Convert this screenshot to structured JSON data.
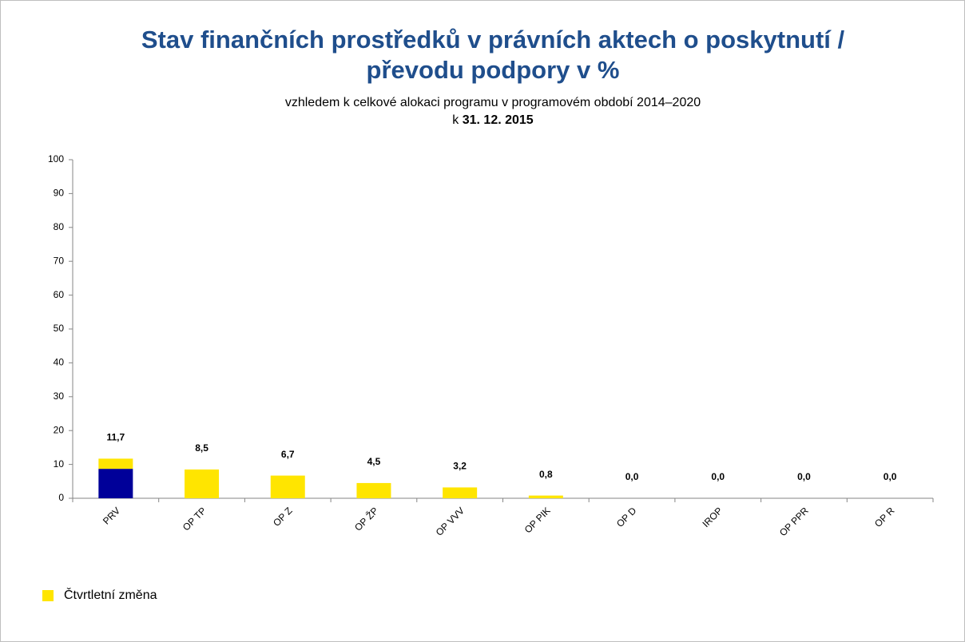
{
  "chart_data": {
    "type": "bar",
    "stacked": true,
    "title": [
      "Stav finančních prostředků v právních aktech o poskytnutí /",
      "převodu podpory v %"
    ],
    "subtitle": "vzhledem k celkové alokaci programu v programovém období 2014–2020",
    "date_prefix": "k",
    "date": "31. 12. 2015",
    "categories": [
      "PRV",
      "OP TP",
      "OP Z",
      "OP ŽP",
      "OP VVV",
      "OP PIK",
      "OP D",
      "IROP",
      "OP PPR",
      "OP R"
    ],
    "series": [
      {
        "color": "#000099",
        "values": [
          8.7,
          0,
          0,
          0,
          0,
          0,
          0,
          0,
          0,
          0
        ]
      },
      {
        "name": "Čtvrtletní změna",
        "color": "#ffe500",
        "values": [
          3.0,
          8.5,
          6.7,
          4.5,
          3.2,
          0.8,
          0,
          0,
          0,
          0
        ]
      }
    ],
    "totals": [
      11.7,
      8.5,
      6.7,
      4.5,
      3.2,
      0.8,
      0,
      0,
      0,
      0
    ],
    "total_labels": [
      "11,7",
      "8,5",
      "6,7",
      "4,5",
      "3,2",
      "0,8",
      "0,0",
      "0,0",
      "0,0",
      "0,0"
    ],
    "ylim": [
      0,
      100
    ],
    "yticks": [
      0,
      10,
      20,
      30,
      40,
      50,
      60,
      70,
      80,
      90,
      100
    ],
    "grid": false,
    "legend": "bottom-left"
  }
}
